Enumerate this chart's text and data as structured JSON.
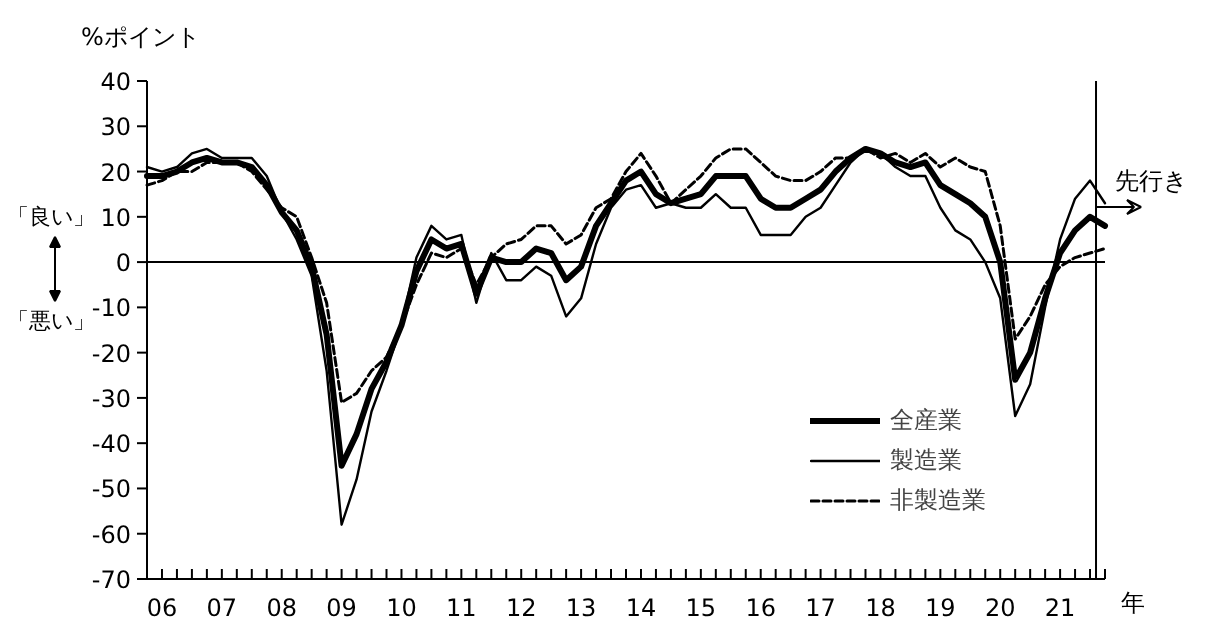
{
  "chart_data": {
    "type": "line",
    "ylabel": "%ポイント",
    "xlim": [
      2005.75,
      2021.75
    ],
    "ylim": [
      -70,
      40
    ],
    "xticks": [
      {
        "value": 2006,
        "label": "06"
      },
      {
        "value": 2007,
        "label": "07"
      },
      {
        "value": 2008,
        "label": "08"
      },
      {
        "value": 2009,
        "label": "09"
      },
      {
        "value": 2010,
        "label": "10"
      },
      {
        "value": 2011,
        "label": "11"
      },
      {
        "value": 2012,
        "label": "12"
      },
      {
        "value": 2013,
        "label": "13"
      },
      {
        "value": 2014,
        "label": "14"
      },
      {
        "value": 2015,
        "label": "15"
      },
      {
        "value": 2016,
        "label": "16"
      },
      {
        "value": 2017,
        "label": "17"
      },
      {
        "value": 2018,
        "label": "18"
      },
      {
        "value": 2019,
        "label": "19"
      },
      {
        "value": 2020,
        "label": "20"
      },
      {
        "value": 2021,
        "label": "21"
      }
    ],
    "yticks": [
      -70,
      -60,
      -50,
      -40,
      -30,
      -20,
      -10,
      0,
      10,
      20,
      30,
      40
    ],
    "xlabel": "年",
    "grid": false,
    "legend": "bottom right",
    "marker": "none",
    "annotations": [
      "「良い」",
      "「悪い」"
    ],
    "ref_lines": [
      {
        "axis": "y",
        "value": 0,
        "color": "#000000"
      },
      {
        "axis": "x",
        "value": 2021.6,
        "label": "先行き",
        "color": "#000000"
      }
    ],
    "x": [
      2005.75,
      2006.0,
      2006.25,
      2006.5,
      2006.75,
      2007.0,
      2007.25,
      2007.5,
      2007.75,
      2008.0,
      2008.25,
      2008.5,
      2008.75,
      2009.0,
      2009.25,
      2009.5,
      2009.75,
      2010.0,
      2010.25,
      2010.5,
      2010.75,
      2011.0,
      2011.25,
      2011.5,
      2011.75,
      2012.0,
      2012.25,
      2012.5,
      2012.75,
      2013.0,
      2013.25,
      2013.5,
      2013.75,
      2014.0,
      2014.25,
      2014.5,
      2014.75,
      2015.0,
      2015.25,
      2015.5,
      2015.75,
      2016.0,
      2016.25,
      2016.5,
      2016.75,
      2017.0,
      2017.25,
      2017.5,
      2017.75,
      2018.0,
      2018.25,
      2018.5,
      2018.75,
      2019.0,
      2019.25,
      2019.5,
      2019.75,
      2020.0,
      2020.25,
      2020.5,
      2020.75,
      2021.0,
      2021.25,
      2021.5,
      2021.75
    ],
    "series": [
      {
        "name": "全産業",
        "color": "#000000",
        "line_style": "solid",
        "values": [
          19,
          19,
          20,
          22,
          23,
          22,
          22,
          21,
          17,
          11,
          7,
          -1,
          -16,
          -45,
          -38,
          -28,
          -22,
          -14,
          -2,
          5,
          3,
          4,
          -7,
          1,
          0,
          0,
          3,
          2,
          -4,
          -1,
          8,
          13,
          18,
          20,
          15,
          13,
          14,
          15,
          19,
          19,
          19,
          14,
          12,
          12,
          14,
          16,
          20,
          23,
          25,
          24,
          22,
          21,
          22,
          17,
          15,
          13,
          10,
          0,
          -26,
          -20,
          -8,
          2,
          7,
          10,
          8
        ]
      },
      {
        "name": "製造業",
        "color": "#000000",
        "line_style": "solid",
        "values": [
          21,
          20,
          21,
          24,
          25,
          23,
          23,
          23,
          19,
          11,
          5,
          -3,
          -24,
          -58,
          -48,
          -33,
          -24,
          -14,
          1,
          8,
          5,
          6,
          -9,
          2,
          -4,
          -4,
          -1,
          -3,
          -12,
          -8,
          4,
          12,
          16,
          17,
          12,
          13,
          12,
          12,
          15,
          12,
          12,
          6,
          6,
          6,
          10,
          12,
          17,
          22,
          25,
          24,
          21,
          19,
          19,
          12,
          7,
          5,
          0,
          -8,
          -34,
          -27,
          -10,
          5,
          14,
          18,
          13
        ]
      },
      {
        "name": "非製造業",
        "color": "#000000",
        "line_style": "dashed",
        "values": [
          17,
          18,
          20,
          20,
          22,
          22,
          22,
          20,
          16,
          12,
          10,
          1,
          -9,
          -31,
          -29,
          -24,
          -21,
          -14,
          -5,
          2,
          1,
          3,
          -5,
          1,
          4,
          5,
          8,
          8,
          4,
          6,
          12,
          14,
          20,
          24,
          19,
          13,
          16,
          19,
          23,
          25,
          25,
          22,
          19,
          18,
          18,
          20,
          23,
          23,
          25,
          23,
          24,
          22,
          24,
          21,
          23,
          21,
          20,
          8,
          -17,
          -12,
          -5,
          -1,
          1,
          2,
          3
        ]
      }
    ]
  }
}
